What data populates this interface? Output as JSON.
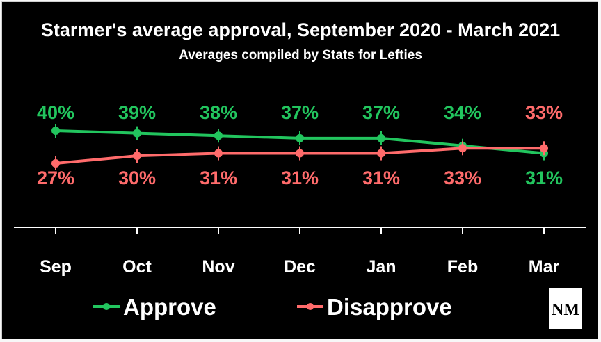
{
  "chart_data": {
    "type": "line",
    "title": "Starmer's average approval, September 2020 - March 2021",
    "subtitle": "Averages compiled by Stats for Lefties",
    "categories": [
      "Sep",
      "Oct",
      "Nov",
      "Dec",
      "Jan",
      "Feb",
      "Mar"
    ],
    "series": [
      {
        "name": "Approve",
        "color": "#22c55e",
        "values": [
          40,
          39,
          38,
          37,
          37,
          34,
          31
        ],
        "labels": [
          "40%",
          "39%",
          "38%",
          "37%",
          "37%",
          "34%",
          "31%"
        ]
      },
      {
        "name": "Disapprove",
        "color": "#ff6b6b",
        "values": [
          27,
          30,
          31,
          31,
          31,
          33,
          33
        ],
        "labels": [
          "27%",
          "30%",
          "31%",
          "31%",
          "31%",
          "33%",
          "33%"
        ]
      }
    ],
    "grid": false,
    "legend": "bottom"
  },
  "logo": {
    "text": "NM",
    "icon": "nm-logo-icon"
  }
}
